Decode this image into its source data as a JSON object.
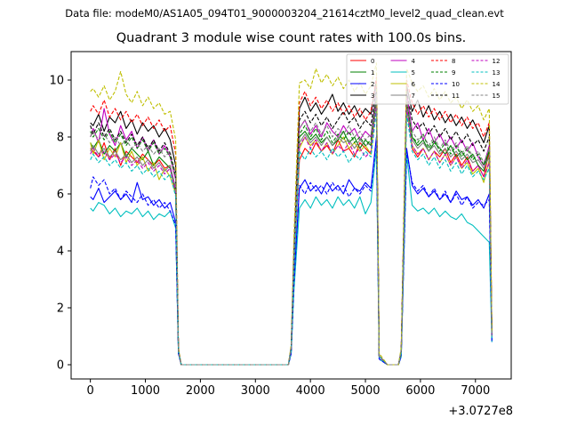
{
  "figure": {
    "suptitle": "Data file: modeM0/AS1A05_094T01_9000003204_21614cztM0_level2_quad_clean.evt"
  },
  "chart_data": {
    "type": "line",
    "title": "Quadrant 3 module wise count rates with 100.0s bins.",
    "xlabel": "",
    "ylabel": "",
    "x_offset_label": "+3.0727e8",
    "xlim": [
      -350,
      7650
    ],
    "ylim": [
      -0.5,
      11.0
    ],
    "xticks": [
      0,
      1000,
      2000,
      3000,
      4000,
      5000,
      6000,
      7000
    ],
    "yticks": [
      0,
      2,
      4,
      6,
      8,
      10
    ],
    "grid": false,
    "legend_position": "top-right",
    "x": [
      0,
      50,
      150,
      250,
      350,
      450,
      550,
      650,
      750,
      850,
      950,
      1050,
      1150,
      1250,
      1350,
      1450,
      1550,
      1600,
      1650,
      2000,
      2500,
      3000,
      3600,
      3650,
      3700,
      3800,
      3900,
      4000,
      4100,
      4200,
      4300,
      4400,
      4500,
      4600,
      4700,
      4800,
      4900,
      5000,
      5100,
      5200,
      5250,
      5400,
      5450,
      5600,
      5650,
      5750,
      5850,
      5950,
      6050,
      6150,
      6250,
      6350,
      6450,
      6550,
      6650,
      6750,
      6850,
      6950,
      7050,
      7150,
      7250,
      7300
    ],
    "series": [
      {
        "name": "0",
        "color": "#ff0000",
        "dash": "solid",
        "values": [
          7.6,
          7.5,
          7.3,
          7.8,
          7.2,
          7.6,
          7.0,
          7.5,
          7.3,
          7.1,
          7.4,
          7.2,
          7.0,
          7.2,
          6.9,
          7.0,
          6.0,
          0.5,
          0.0,
          0.0,
          0.0,
          0.0,
          0.0,
          0.5,
          3.5,
          7.2,
          7.6,
          7.4,
          7.8,
          7.5,
          7.7,
          7.4,
          7.9,
          7.5,
          7.6,
          7.3,
          7.8,
          7.6,
          7.4,
          9.6,
          0.3,
          0.0,
          0.0,
          0.0,
          0.4,
          9.5,
          7.6,
          7.3,
          7.6,
          7.2,
          7.5,
          7.3,
          7.6,
          7.1,
          7.4,
          7.0,
          7.3,
          6.8,
          7.0,
          6.6,
          7.5,
          1.0
        ]
      },
      {
        "name": "1",
        "color": "#008000",
        "dash": "solid",
        "values": [
          7.8,
          7.6,
          7.9,
          7.4,
          7.7,
          7.5,
          7.8,
          7.3,
          7.6,
          7.4,
          7.2,
          7.5,
          7.0,
          7.3,
          7.1,
          6.9,
          6.1,
          0.5,
          0.0,
          0.0,
          0.0,
          0.0,
          0.0,
          0.5,
          3.6,
          8.0,
          8.2,
          7.9,
          8.1,
          7.8,
          8.0,
          7.7,
          7.9,
          8.2,
          7.8,
          8.0,
          7.6,
          7.9,
          7.7,
          9.4,
          0.3,
          0.0,
          0.0,
          0.0,
          0.4,
          9.2,
          8.0,
          7.7,
          7.9,
          7.5,
          7.8,
          7.6,
          7.4,
          7.7,
          7.3,
          7.5,
          7.2,
          7.4,
          7.0,
          6.8,
          7.6,
          1.0
        ]
      },
      {
        "name": "2",
        "color": "#0000ff",
        "dash": "solid",
        "values": [
          5.9,
          5.8,
          6.2,
          5.7,
          5.9,
          6.1,
          5.8,
          6.0,
          5.7,
          6.4,
          5.8,
          5.9,
          5.6,
          5.8,
          5.5,
          5.7,
          5.0,
          0.4,
          0.0,
          0.0,
          0.0,
          0.0,
          0.0,
          0.4,
          2.9,
          6.2,
          6.5,
          6.1,
          6.3,
          6.0,
          6.4,
          6.1,
          6.3,
          6.0,
          6.5,
          6.2,
          6.1,
          6.4,
          6.2,
          8.0,
          0.2,
          0.0,
          0.0,
          0.0,
          0.3,
          7.6,
          6.3,
          6.0,
          6.2,
          5.9,
          6.1,
          5.8,
          6.0,
          5.7,
          6.1,
          5.8,
          5.9,
          5.6,
          5.8,
          5.5,
          6.0,
          0.8
        ]
      },
      {
        "name": "3",
        "color": "#000000",
        "dash": "solid",
        "values": [
          8.5,
          8.4,
          8.8,
          8.2,
          8.7,
          8.5,
          8.9,
          8.3,
          8.6,
          8.1,
          8.5,
          8.2,
          8.4,
          8.0,
          8.3,
          7.9,
          7.0,
          0.5,
          0.0,
          0.0,
          0.0,
          0.0,
          0.0,
          0.6,
          4.0,
          9.0,
          9.4,
          8.9,
          9.2,
          8.8,
          9.1,
          9.5,
          8.9,
          9.2,
          8.8,
          9.1,
          8.7,
          9.0,
          8.8,
          10.0,
          0.3,
          0.0,
          0.0,
          0.0,
          0.5,
          9.8,
          8.9,
          9.3,
          8.7,
          9.1,
          8.6,
          8.9,
          8.5,
          8.8,
          8.4,
          8.7,
          8.3,
          8.6,
          8.2,
          7.8,
          8.4,
          1.1
        ]
      },
      {
        "name": "4",
        "color": "#bf00bf",
        "dash": "solid",
        "values": [
          8.0,
          8.3,
          7.8,
          9.0,
          8.1,
          7.7,
          8.4,
          7.9,
          8.2,
          7.6,
          8.0,
          7.5,
          7.9,
          7.4,
          7.7,
          7.3,
          6.5,
          0.5,
          0.0,
          0.0,
          0.0,
          0.0,
          0.0,
          0.6,
          3.8,
          8.3,
          8.6,
          8.1,
          8.4,
          8.0,
          8.5,
          8.2,
          8.0,
          8.4,
          8.1,
          8.3,
          7.9,
          8.2,
          8.0,
          9.7,
          0.3,
          0.0,
          0.0,
          0.0,
          0.5,
          9.6,
          8.2,
          8.5,
          7.9,
          8.3,
          7.8,
          8.1,
          7.7,
          8.0,
          7.6,
          7.9,
          7.5,
          7.8,
          7.3,
          7.0,
          7.7,
          1.0
        ]
      },
      {
        "name": "5",
        "color": "#00bfbf",
        "dash": "solid",
        "values": [
          5.5,
          5.4,
          5.7,
          5.6,
          5.3,
          5.5,
          5.2,
          5.4,
          5.3,
          5.5,
          5.2,
          5.4,
          5.1,
          5.3,
          5.2,
          5.4,
          4.8,
          0.4,
          0.0,
          0.0,
          0.0,
          0.0,
          0.0,
          0.4,
          2.6,
          5.5,
          5.8,
          5.5,
          5.9,
          5.6,
          5.8,
          5.5,
          5.9,
          5.6,
          5.8,
          5.5,
          5.9,
          5.3,
          5.7,
          7.6,
          0.2,
          0.0,
          0.0,
          0.0,
          0.3,
          7.4,
          5.6,
          5.4,
          5.5,
          5.3,
          5.5,
          5.2,
          5.4,
          5.2,
          5.1,
          5.3,
          5.0,
          4.9,
          4.7,
          4.5,
          4.3,
          0.8
        ]
      },
      {
        "name": "6",
        "color": "#bfbf00",
        "dash": "solid",
        "values": [
          7.8,
          7.4,
          7.9,
          7.2,
          7.6,
          7.3,
          7.8,
          7.1,
          7.5,
          7.0,
          7.3,
          6.8,
          7.1,
          6.5,
          6.9,
          6.6,
          6.0,
          0.5,
          0.0,
          0.0,
          0.0,
          0.0,
          0.0,
          0.5,
          3.4,
          7.6,
          8.0,
          7.7,
          7.9,
          7.5,
          7.8,
          7.4,
          7.7,
          8.0,
          7.6,
          7.8,
          7.5,
          7.7,
          7.4,
          9.3,
          0.3,
          0.0,
          0.0,
          0.0,
          0.4,
          9.0,
          7.7,
          7.4,
          7.6,
          7.2,
          7.5,
          7.1,
          7.4,
          7.0,
          7.3,
          6.9,
          7.1,
          6.7,
          6.9,
          6.4,
          7.2,
          1.0
        ]
      },
      {
        "name": "7",
        "color": "#808080",
        "dash": "solid",
        "values": [
          7.5,
          7.7,
          7.4,
          7.6,
          7.3,
          7.5,
          7.2,
          7.4,
          7.1,
          7.3,
          7.0,
          7.2,
          6.9,
          7.1,
          6.8,
          7.0,
          6.2,
          0.5,
          0.0,
          0.0,
          0.0,
          0.0,
          0.0,
          0.5,
          3.5,
          7.8,
          8.1,
          7.8,
          8.0,
          7.7,
          8.0,
          7.7,
          8.0,
          7.8,
          7.9,
          7.6,
          7.9,
          7.7,
          7.8,
          9.2,
          0.3,
          0.0,
          0.0,
          0.0,
          0.4,
          9.1,
          7.9,
          7.6,
          7.8,
          7.5,
          7.7,
          7.4,
          7.6,
          7.3,
          7.5,
          7.2,
          7.4,
          7.1,
          7.2,
          6.9,
          7.3,
          1.0
        ]
      },
      {
        "name": "8",
        "color": "#ff0000",
        "dash": "dashed",
        "values": [
          8.9,
          9.1,
          8.8,
          9.3,
          8.7,
          9.0,
          8.6,
          8.9,
          8.5,
          8.8,
          8.4,
          8.7,
          8.3,
          8.6,
          8.2,
          8.4,
          7.4,
          0.6,
          0.0,
          0.0,
          0.0,
          0.0,
          0.0,
          0.6,
          4.1,
          9.2,
          9.6,
          9.1,
          9.4,
          9.0,
          9.3,
          8.9,
          9.2,
          8.8,
          9.1,
          8.7,
          9.0,
          8.6,
          8.9,
          10.1,
          0.3,
          0.0,
          0.0,
          0.0,
          0.5,
          10.0,
          9.2,
          8.8,
          9.1,
          8.7,
          9.0,
          8.6,
          8.9,
          8.5,
          8.8,
          8.4,
          8.7,
          8.3,
          8.5,
          8.0,
          8.5,
          1.1
        ]
      },
      {
        "name": "9",
        "color": "#008000",
        "dash": "dashed",
        "values": [
          8.2,
          8.0,
          8.3,
          7.9,
          8.2,
          7.8,
          8.1,
          7.7,
          8.0,
          7.6,
          7.9,
          7.5,
          7.8,
          7.4,
          7.6,
          7.3,
          6.6,
          0.5,
          0.0,
          0.0,
          0.0,
          0.0,
          0.0,
          0.6,
          3.7,
          8.1,
          8.4,
          8.0,
          8.3,
          7.9,
          8.2,
          7.8,
          8.1,
          7.9,
          8.2,
          7.8,
          8.0,
          7.7,
          7.9,
          9.4,
          0.3,
          0.0,
          0.0,
          0.0,
          0.4,
          9.3,
          8.0,
          7.8,
          8.1,
          7.6,
          7.9,
          7.5,
          7.8,
          7.4,
          7.7,
          7.3,
          7.6,
          7.2,
          7.4,
          7.0,
          7.5,
          1.0
        ]
      },
      {
        "name": "10",
        "color": "#0000ff",
        "dash": "dashed",
        "values": [
          6.2,
          6.6,
          6.3,
          6.5,
          6.0,
          6.2,
          5.8,
          6.1,
          5.9,
          5.7,
          6.0,
          5.6,
          5.8,
          5.5,
          5.7,
          5.4,
          4.9,
          0.4,
          0.0,
          0.0,
          0.0,
          0.0,
          0.0,
          0.4,
          2.8,
          6.3,
          6.0,
          6.4,
          6.1,
          6.3,
          6.0,
          6.4,
          6.1,
          6.3,
          5.9,
          6.2,
          6.0,
          6.3,
          6.1,
          7.9,
          0.2,
          0.0,
          0.0,
          0.0,
          0.3,
          7.5,
          6.4,
          6.1,
          6.3,
          5.9,
          6.2,
          5.8,
          6.1,
          5.7,
          6.0,
          5.6,
          5.9,
          5.5,
          5.7,
          5.6,
          5.8,
          0.8
        ]
      },
      {
        "name": "11",
        "color": "#000000",
        "dash": "dashed",
        "values": [
          8.4,
          8.1,
          8.5,
          8.0,
          8.3,
          7.9,
          8.2,
          7.8,
          8.1,
          7.7,
          8.0,
          7.6,
          7.9,
          7.5,
          7.8,
          7.4,
          6.7,
          0.5,
          0.0,
          0.0,
          0.0,
          0.0,
          0.0,
          0.6,
          3.8,
          8.6,
          8.9,
          8.5,
          8.8,
          8.4,
          8.7,
          8.3,
          8.6,
          8.9,
          8.5,
          8.7,
          8.3,
          8.6,
          8.4,
          9.7,
          0.3,
          0.0,
          0.0,
          0.0,
          0.5,
          9.6,
          8.6,
          8.3,
          8.5,
          8.1,
          8.4,
          8.0,
          8.3,
          7.9,
          8.2,
          7.8,
          8.1,
          7.7,
          7.9,
          7.5,
          8.0,
          1.0
        ]
      },
      {
        "name": "12",
        "color": "#bf00bf",
        "dash": "dashed",
        "values": [
          7.4,
          7.6,
          7.3,
          7.5,
          7.2,
          7.4,
          7.1,
          7.3,
          7.0,
          7.2,
          6.9,
          7.1,
          6.8,
          7.0,
          6.7,
          6.9,
          6.1,
          0.5,
          0.0,
          0.0,
          0.0,
          0.0,
          0.0,
          0.5,
          3.5,
          7.7,
          8.0,
          7.6,
          7.9,
          7.5,
          7.8,
          7.4,
          7.7,
          7.5,
          7.8,
          7.4,
          7.6,
          7.3,
          7.5,
          9.1,
          0.3,
          0.0,
          0.0,
          0.0,
          0.4,
          9.0,
          7.7,
          7.4,
          7.6,
          7.2,
          7.5,
          7.1,
          7.4,
          7.0,
          7.3,
          6.9,
          7.2,
          6.8,
          7.0,
          6.6,
          7.1,
          1.0
        ]
      },
      {
        "name": "13",
        "color": "#00bfbf",
        "dash": "dashed",
        "values": [
          7.2,
          7.4,
          7.1,
          7.3,
          7.0,
          7.2,
          6.9,
          7.1,
          6.8,
          7.0,
          6.7,
          6.9,
          6.6,
          6.8,
          6.5,
          6.7,
          5.9,
          0.5,
          0.0,
          0.0,
          0.0,
          0.0,
          0.0,
          0.5,
          3.3,
          7.5,
          7.2,
          7.6,
          7.3,
          7.5,
          7.2,
          7.6,
          7.3,
          7.5,
          7.1,
          7.4,
          7.2,
          7.5,
          7.3,
          8.9,
          0.3,
          0.0,
          0.0,
          0.0,
          0.4,
          8.8,
          7.5,
          7.2,
          7.4,
          7.0,
          7.3,
          6.9,
          7.2,
          6.8,
          7.1,
          6.7,
          7.0,
          6.6,
          6.8,
          6.5,
          6.9,
          0.9
        ]
      },
      {
        "name": "14",
        "color": "#bfbf00",
        "dash": "dashed",
        "values": [
          9.6,
          9.7,
          9.4,
          9.8,
          9.3,
          9.6,
          10.3,
          9.5,
          9.2,
          9.6,
          9.1,
          9.4,
          9.0,
          9.2,
          8.8,
          8.9,
          7.9,
          0.6,
          0.0,
          0.0,
          0.0,
          0.0,
          0.0,
          0.7,
          4.5,
          9.9,
          10.0,
          9.7,
          10.4,
          9.9,
          10.2,
          9.8,
          10.1,
          9.7,
          10.0,
          9.6,
          9.9,
          9.5,
          9.8,
          10.6,
          0.4,
          0.0,
          0.0,
          0.0,
          0.6,
          10.4,
          9.9,
          9.6,
          9.8,
          9.4,
          9.7,
          9.3,
          9.6,
          9.2,
          9.4,
          9.0,
          9.3,
          8.9,
          9.1,
          8.6,
          9.0,
          1.1
        ]
      },
      {
        "name": "15",
        "color": "#808080",
        "dash": "dashed",
        "values": [
          8.0,
          8.2,
          7.9,
          8.1,
          7.8,
          8.0,
          7.7,
          7.9,
          7.6,
          7.8,
          7.5,
          7.7,
          7.4,
          7.6,
          7.3,
          7.5,
          6.7,
          0.5,
          0.0,
          0.0,
          0.0,
          0.0,
          0.0,
          0.6,
          3.9,
          8.3,
          8.6,
          8.2,
          8.5,
          8.1,
          8.4,
          8.0,
          8.3,
          8.1,
          8.4,
          8.0,
          8.2,
          7.9,
          8.1,
          9.5,
          0.3,
          0.0,
          0.0,
          0.0,
          0.5,
          9.3,
          8.2,
          7.9,
          8.1,
          7.7,
          8.0,
          7.6,
          7.9,
          7.5,
          7.8,
          7.4,
          7.7,
          7.3,
          7.5,
          7.1,
          7.6,
          1.0
        ]
      }
    ]
  }
}
